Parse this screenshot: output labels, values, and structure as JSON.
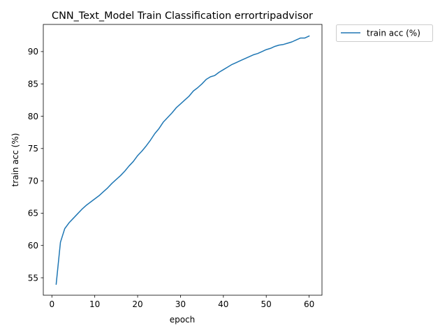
{
  "chart_data": {
    "type": "line",
    "title": "CNN_Text_Model Train Classification errortripadvisor",
    "xlabel": "epoch",
    "ylabel": "train acc (%)",
    "xlim": [
      -2,
      63
    ],
    "ylim": [
      52.3,
      94.2
    ],
    "xticks": [
      0,
      10,
      20,
      30,
      40,
      50,
      60
    ],
    "yticks": [
      55,
      60,
      65,
      70,
      75,
      80,
      85,
      90
    ],
    "grid": false,
    "legend_position": "outside-top-right",
    "series": [
      {
        "name": "train acc (%)",
        "color": "#1f77b4",
        "x": [
          1,
          2,
          3,
          4,
          5,
          6,
          7,
          8,
          9,
          10,
          11,
          12,
          13,
          14,
          15,
          16,
          17,
          18,
          19,
          20,
          21,
          22,
          23,
          24,
          25,
          26,
          27,
          28,
          29,
          30,
          31,
          32,
          33,
          34,
          35,
          36,
          37,
          38,
          39,
          40,
          41,
          42,
          43,
          44,
          45,
          46,
          47,
          48,
          49,
          50,
          51,
          52,
          53,
          54,
          55,
          56,
          57,
          58,
          59,
          60
        ],
        "y": [
          54.0,
          60.5,
          62.6,
          63.5,
          64.2,
          64.9,
          65.6,
          66.2,
          66.7,
          67.2,
          67.7,
          68.3,
          68.9,
          69.6,
          70.2,
          70.8,
          71.5,
          72.3,
          73.0,
          73.9,
          74.6,
          75.4,
          76.3,
          77.3,
          78.1,
          79.1,
          79.8,
          80.5,
          81.3,
          81.9,
          82.5,
          83.1,
          83.9,
          84.4,
          85.0,
          85.7,
          86.1,
          86.3,
          86.8,
          87.2,
          87.6,
          88.0,
          88.3,
          88.6,
          88.9,
          89.2,
          89.5,
          89.7,
          90.0,
          90.3,
          90.5,
          90.8,
          91.0,
          91.1,
          91.3,
          91.5,
          91.8,
          92.1,
          92.1,
          92.4
        ]
      }
    ]
  }
}
